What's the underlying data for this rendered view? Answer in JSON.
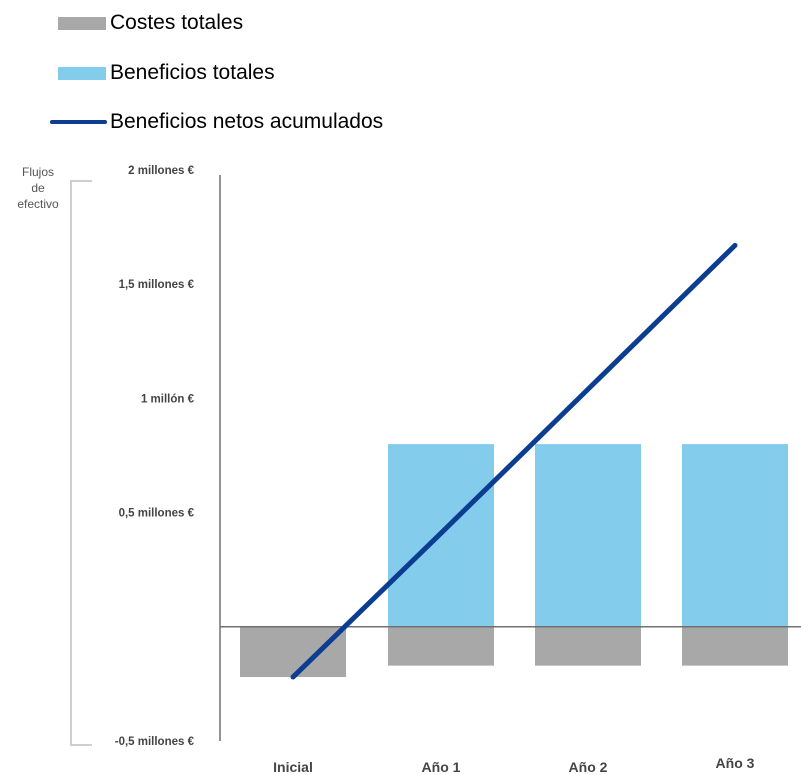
{
  "chart_data": {
    "type": "bar",
    "categories": [
      "Inicial",
      "Año 1",
      "Año 2",
      "Año 3"
    ],
    "series": [
      {
        "name": "Costes totales",
        "kind": "bar",
        "color": "#a8a8a8",
        "values": [
          -0.22,
          -0.17,
          -0.17,
          -0.17
        ]
      },
      {
        "name": "Beneficios totales",
        "kind": "bar",
        "color": "#84cceb",
        "values": [
          0,
          0.8,
          0.8,
          0.8
        ]
      },
      {
        "name": "Beneficios netos acumulados",
        "kind": "line",
        "color": "#0b3d91",
        "values": [
          -0.22,
          0.41,
          1.04,
          1.67
        ]
      }
    ],
    "ylim": [
      -0.5,
      2
    ],
    "yticks": [
      {
        "value": 2,
        "label": "2 millones €"
      },
      {
        "value": 1.5,
        "label": "1,5 millones €"
      },
      {
        "value": 1,
        "label": "1 millón €"
      },
      {
        "value": 0.5,
        "label": "0,5 millones €"
      },
      {
        "value": -0.5,
        "label": "-0,5 millones €"
      }
    ],
    "ylabel_lines": [
      "Flujos",
      "de",
      "efectivo"
    ],
    "xlabel": "",
    "legend_position": "top-left",
    "grid": false
  },
  "legend": {
    "costs_label": "Costes totales",
    "benefits_label": "Beneficios totales",
    "net_label": "Beneficios netos acumulados"
  },
  "colors": {
    "cost": "#a8a8a8",
    "benefit": "#84cceb",
    "net": "#0b3d91",
    "axis": "#707070",
    "bracket": "#cfcfcf"
  }
}
